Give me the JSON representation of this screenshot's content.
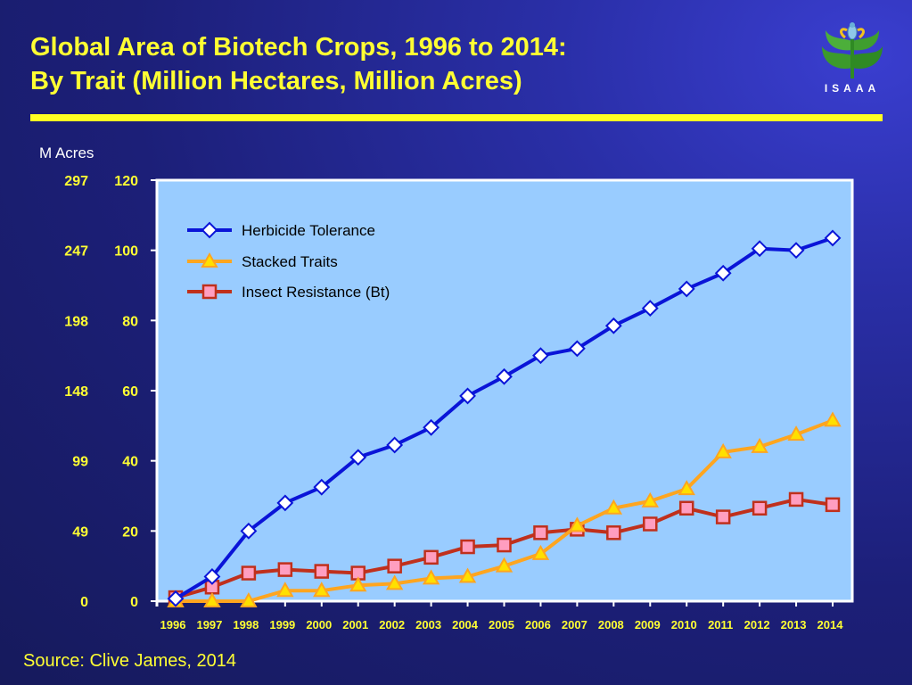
{
  "title": {
    "line1": "Global Area of Biotech Crops, 1996 to 2014:",
    "line2": "By Trait (Million Hectares, Million Acres)"
  },
  "logo": {
    "text": "ISAAA"
  },
  "source": "Source: Clive James, 2014",
  "colors": {
    "title": "#ffff33",
    "plot_background": "#99ccff",
    "herbicide": "#0a14d8",
    "stacked": "#ffa51f",
    "insect": "#c0301c"
  },
  "chart_data": {
    "type": "line",
    "title": "Global Area of Biotech Crops, 1996 to 2014: By Trait (Million Hectares, Million Acres)",
    "secondary_axis_label": "M Acres",
    "ylim": [
      0,
      120
    ],
    "y_ticks": [
      0,
      20,
      40,
      60,
      80,
      100,
      120
    ],
    "acre_ticks": [
      "0",
      "49",
      "99",
      "148",
      "198",
      "247",
      "297"
    ],
    "categories": [
      "1996",
      "1997",
      "1998",
      "1999",
      "2000",
      "2001",
      "2002",
      "2003",
      "2004",
      "2005",
      "2006",
      "2007",
      "2008",
      "2009",
      "2010",
      "2011",
      "2012",
      "2013",
      "2014"
    ],
    "legend_position": "top-left",
    "grid": false,
    "series": [
      {
        "name": "Herbicide Tolerance",
        "marker": "diamond",
        "color": "#0a14d8",
        "values": [
          0.7,
          7,
          20,
          28,
          32.5,
          41,
          44.5,
          49.5,
          58.5,
          64,
          70,
          72,
          78.5,
          83.5,
          89,
          93.5,
          100.5,
          100,
          103.5
        ]
      },
      {
        "name": "Stacked Traits",
        "marker": "triangle",
        "color": "#ffa51f",
        "values": [
          0,
          0,
          0,
          3,
          3,
          4.5,
          5,
          6.5,
          7,
          10,
          13.5,
          21.5,
          26.5,
          28.5,
          32,
          42.5,
          44,
          47.5,
          51.5
        ]
      },
      {
        "name": "Insect Resistance (Bt)",
        "marker": "square",
        "color": "#c0301c",
        "values": [
          1,
          4,
          8,
          9,
          8.5,
          8,
          10,
          12.5,
          15.5,
          16,
          19.5,
          20.5,
          19.5,
          22,
          26.5,
          24,
          26.5,
          29,
          27.5
        ]
      }
    ]
  }
}
